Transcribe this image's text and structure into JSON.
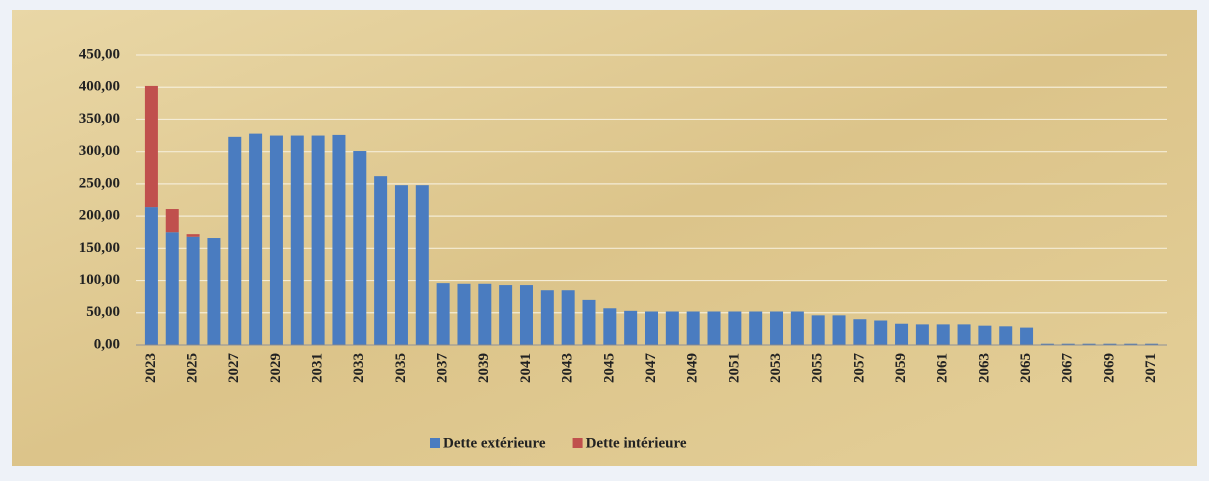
{
  "chart_data": {
    "type": "bar",
    "stacked": true,
    "categories": [
      "2023",
      null,
      "2025",
      null,
      "2027",
      null,
      "2029",
      null,
      "2031",
      null,
      "2033",
      null,
      "2035",
      null,
      "2037",
      null,
      "2039",
      null,
      "2041",
      null,
      "2043",
      null,
      "2045",
      null,
      "2047",
      null,
      "2049",
      null,
      "2051",
      null,
      "2053",
      null,
      "2055",
      null,
      "2057",
      null,
      "2059",
      null,
      "2061",
      null,
      "2063",
      null,
      "2065",
      null,
      "2067",
      null,
      "2069",
      null,
      "2071"
    ],
    "series": [
      {
        "name": "Dette extérieure",
        "color": "#4a7cc0",
        "values": [
          214,
          175,
          168,
          166,
          323,
          328,
          325,
          325,
          325,
          326,
          301,
          262,
          248,
          248,
          96,
          95,
          95,
          93,
          93,
          85,
          85,
          70,
          57,
          53,
          52,
          52,
          52,
          52,
          52,
          52,
          52,
          52,
          46,
          46,
          40,
          38,
          33,
          32,
          32,
          32,
          30,
          29,
          27,
          2,
          2,
          2,
          2,
          2,
          2
        ]
      },
      {
        "name": "Dette intérieure",
        "color": "#c0504d",
        "values": [
          188,
          36,
          4,
          0,
          0,
          0,
          0,
          0,
          0,
          0,
          0,
          0,
          0,
          0,
          0,
          0,
          0,
          0,
          0,
          0,
          0,
          0,
          0,
          0,
          0,
          0,
          0,
          0,
          0,
          0,
          0,
          0,
          0,
          0,
          0,
          0,
          0,
          0,
          0,
          0,
          0,
          0,
          0,
          0,
          0,
          0,
          0,
          0,
          0
        ]
      }
    ],
    "ylim": [
      0,
      450
    ],
    "yticks": [
      {
        "value": 0,
        "label": "0,00"
      },
      {
        "value": 50,
        "label": "50,00"
      },
      {
        "value": 100,
        "label": "100,00"
      },
      {
        "value": 150,
        "label": "150,00"
      },
      {
        "value": 200,
        "label": "200,00"
      },
      {
        "value": 250,
        "label": "250,00"
      },
      {
        "value": 300,
        "label": "300,00"
      },
      {
        "value": 350,
        "label": "350,00"
      },
      {
        "value": 400,
        "label": "400,00"
      },
      {
        "value": 450,
        "label": "450,00"
      }
    ],
    "grid": true,
    "legend": "bottom"
  }
}
